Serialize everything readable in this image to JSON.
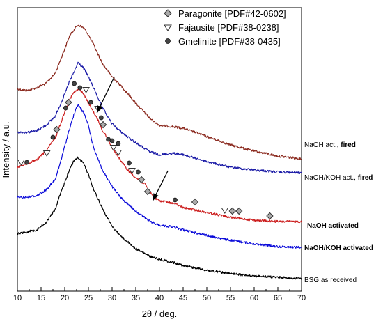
{
  "chart_data": {
    "type": "line",
    "xlabel": "2θ / deg.",
    "ylabel": "Intensity / a.u.",
    "xlim": [
      10,
      70
    ],
    "xticks": [
      10,
      15,
      20,
      25,
      30,
      35,
      40,
      45,
      50,
      55,
      60,
      65,
      70
    ],
    "yticks_shown": false,
    "grid": false,
    "legend_position": "top-right",
    "legend": [
      {
        "label": "Paragonite [PDF#42-0602]",
        "marker": "diamond"
      },
      {
        "label": "Fajausite [PDF#38-0238]",
        "marker": "triangle-down"
      },
      {
        "label": "Gmelinite [PDF#38-0435]",
        "marker": "circle"
      }
    ],
    "series": [
      {
        "name": "NaOH act., ",
        "name_bold": "fired",
        "color": "#8b2a1f",
        "points": [
          [
            10,
            128
          ],
          [
            12,
            130
          ],
          [
            14,
            126
          ],
          [
            16,
            120
          ],
          [
            18,
            105
          ],
          [
            20,
            70
          ],
          [
            21,
            52
          ],
          [
            22,
            42
          ],
          [
            22.8,
            36
          ],
          [
            24,
            40
          ],
          [
            25,
            50
          ],
          [
            26,
            63
          ],
          [
            28,
            92
          ],
          [
            30,
            110
          ],
          [
            32,
            124
          ],
          [
            35,
            148
          ],
          [
            38,
            170
          ],
          [
            40,
            180
          ],
          [
            43,
            182
          ],
          [
            45,
            184
          ],
          [
            50,
            196
          ],
          [
            55,
            208
          ],
          [
            60,
            217
          ],
          [
            65,
            224
          ],
          [
            70,
            228
          ]
        ]
      },
      {
        "name": "NaOH/KOH act., ",
        "name_bold": "fired",
        "color": "#1a1aa6",
        "points": [
          [
            10,
            190
          ],
          [
            12,
            190
          ],
          [
            14,
            188
          ],
          [
            16,
            180
          ],
          [
            18,
            167
          ],
          [
            20,
            135
          ],
          [
            21,
            117
          ],
          [
            22,
            103
          ],
          [
            22.8,
            90
          ],
          [
            24,
            98
          ],
          [
            25,
            110
          ],
          [
            26,
            125
          ],
          [
            28,
            155
          ],
          [
            30,
            178
          ],
          [
            32,
            190
          ],
          [
            35,
            205
          ],
          [
            38,
            218
          ],
          [
            40,
            222
          ],
          [
            43,
            220
          ],
          [
            45,
            222
          ],
          [
            50,
            232
          ],
          [
            55,
            240
          ],
          [
            60,
            244
          ],
          [
            65,
            247
          ],
          [
            70,
            248
          ]
        ]
      },
      {
        "name": "NaOH activated",
        "color": "#cc1f1f",
        "points": [
          [
            10,
            240
          ],
          [
            12,
            235
          ],
          [
            14,
            230
          ],
          [
            16,
            217
          ],
          [
            18,
            198
          ],
          [
            19,
            180
          ],
          [
            20,
            160
          ],
          [
            21,
            143
          ],
          [
            22,
            132
          ],
          [
            23,
            128
          ],
          [
            24,
            135
          ],
          [
            25,
            148
          ],
          [
            26,
            160
          ],
          [
            27,
            172
          ],
          [
            28,
            188
          ],
          [
            29,
            198
          ],
          [
            30,
            212
          ],
          [
            31,
            222
          ],
          [
            32,
            232
          ],
          [
            33,
            242
          ],
          [
            35,
            255
          ],
          [
            37,
            265
          ],
          [
            38,
            275
          ],
          [
            39,
            285
          ],
          [
            40,
            288
          ],
          [
            43,
            292
          ],
          [
            45,
            298
          ],
          [
            50,
            305
          ],
          [
            55,
            312
          ],
          [
            60,
            316
          ],
          [
            65,
            318
          ],
          [
            70,
            318
          ]
        ]
      },
      {
        "name": "NaOH/KOH activated",
        "color": "#0a0ad9",
        "points": [
          [
            10,
            283
          ],
          [
            12,
            283
          ],
          [
            14,
            281
          ],
          [
            16,
            273
          ],
          [
            18,
            258
          ],
          [
            19,
            235
          ],
          [
            20,
            210
          ],
          [
            21,
            185
          ],
          [
            22,
            163
          ],
          [
            22.8,
            150
          ],
          [
            24,
            162
          ],
          [
            25,
            180
          ],
          [
            26,
            210
          ],
          [
            28,
            245
          ],
          [
            30,
            268
          ],
          [
            32,
            285
          ],
          [
            35,
            303
          ],
          [
            38,
            318
          ],
          [
            40,
            323
          ],
          [
            43,
            326
          ],
          [
            45,
            330
          ],
          [
            50,
            338
          ],
          [
            55,
            345
          ],
          [
            60,
            350
          ],
          [
            65,
            354
          ],
          [
            70,
            355
          ]
        ]
      },
      {
        "name": "BSG as received",
        "color": "#000000",
        "points": [
          [
            10,
            335
          ],
          [
            12,
            333
          ],
          [
            14,
            330
          ],
          [
            16,
            320
          ],
          [
            18,
            300
          ],
          [
            19,
            280
          ],
          [
            20,
            262
          ],
          [
            21,
            243
          ],
          [
            22,
            230
          ],
          [
            22.8,
            226
          ],
          [
            24,
            235
          ],
          [
            25,
            250
          ],
          [
            26,
            270
          ],
          [
            28,
            300
          ],
          [
            30,
            325
          ],
          [
            32,
            340
          ],
          [
            35,
            357
          ],
          [
            38,
            368
          ],
          [
            40,
            372
          ],
          [
            43,
            377
          ],
          [
            45,
            381
          ],
          [
            50,
            388
          ],
          [
            55,
            393
          ],
          [
            60,
            396
          ],
          [
            65,
            398
          ],
          [
            70,
            400
          ]
        ]
      }
    ],
    "markers": [
      {
        "type": "triangle-down",
        "x": 10.8,
        "y": 233
      },
      {
        "type": "circle",
        "x": 12.0,
        "y": 233
      },
      {
        "type": "triangle-down",
        "x": 16.2,
        "y": 220
      },
      {
        "type": "circle",
        "x": 17.5,
        "y": 197
      },
      {
        "type": "diamond",
        "x": 18.3,
        "y": 186
      },
      {
        "type": "circle",
        "x": 20.2,
        "y": 155
      },
      {
        "type": "diamond",
        "x": 20.8,
        "y": 147
      },
      {
        "type": "circle",
        "x": 22.0,
        "y": 120
      },
      {
        "type": "circle",
        "x": 23.2,
        "y": 126
      },
      {
        "type": "triangle-down",
        "x": 24.5,
        "y": 129
      },
      {
        "type": "circle",
        "x": 25.5,
        "y": 147
      },
      {
        "type": "triangle-down",
        "x": 27.0,
        "y": 156
      },
      {
        "type": "circle",
        "x": 27.7,
        "y": 169
      },
      {
        "type": "diamond",
        "x": 28.1,
        "y": 179
      },
      {
        "type": "circle",
        "x": 29.2,
        "y": 200
      },
      {
        "type": "circle",
        "x": 30.0,
        "y": 202
      },
      {
        "type": "triangle-down",
        "x": 30.3,
        "y": 212
      },
      {
        "type": "circle",
        "x": 31.3,
        "y": 206
      },
      {
        "type": "triangle-down",
        "x": 31.3,
        "y": 219
      },
      {
        "type": "circle",
        "x": 33.6,
        "y": 234
      },
      {
        "type": "triangle-down",
        "x": 34.2,
        "y": 245
      },
      {
        "type": "circle",
        "x": 35.5,
        "y": 247
      },
      {
        "type": "diamond",
        "x": 36.2,
        "y": 258
      },
      {
        "type": "diamond",
        "x": 37.5,
        "y": 275
      },
      {
        "type": "circle",
        "x": 43.3,
        "y": 287
      },
      {
        "type": "diamond",
        "x": 47.5,
        "y": 290
      },
      {
        "type": "triangle-down",
        "x": 53.8,
        "y": 302
      },
      {
        "type": "diamond",
        "x": 55.4,
        "y": 303
      },
      {
        "type": "diamond",
        "x": 56.8,
        "y": 303
      },
      {
        "type": "diamond",
        "x": 63.3,
        "y": 310
      }
    ],
    "arrows": [
      {
        "from": [
          30.5,
          110
        ],
        "to": [
          26.8,
          162
        ]
      },
      {
        "from": [
          41.8,
          245
        ],
        "to": [
          38.6,
          288
        ]
      }
    ]
  }
}
